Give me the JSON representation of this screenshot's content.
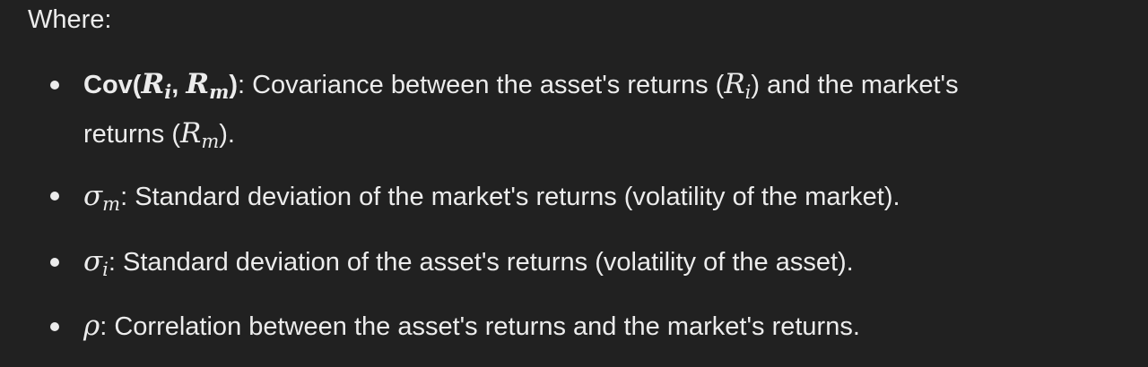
{
  "intro": "Where:",
  "items": [
    {
      "term_prefix": "Cov(",
      "term_var1": "R",
      "term_sub1": "i",
      "term_sep": ", ",
      "term_var2": "R",
      "term_sub2": "m",
      "term_suffix": ")",
      "desc_part1": ": Covariance between the asset's returns (",
      "desc_var1": "R",
      "desc_sub1": "i",
      "desc_part2": ") and the market's",
      "desc_line2_part1": "returns (",
      "desc_line2_var": "R",
      "desc_line2_sub": "m",
      "desc_line2_part2": ")."
    },
    {
      "symbol": "σ",
      "symbol_sub": "m",
      "desc": ": Standard deviation of the market's returns (volatility of the market)."
    },
    {
      "symbol": "σ",
      "symbol_sub": "i",
      "desc": ": Standard deviation of the asset's returns (volatility of the asset)."
    },
    {
      "symbol": "ρ",
      "desc": ": Correlation between the asset's returns and the market's returns."
    }
  ]
}
